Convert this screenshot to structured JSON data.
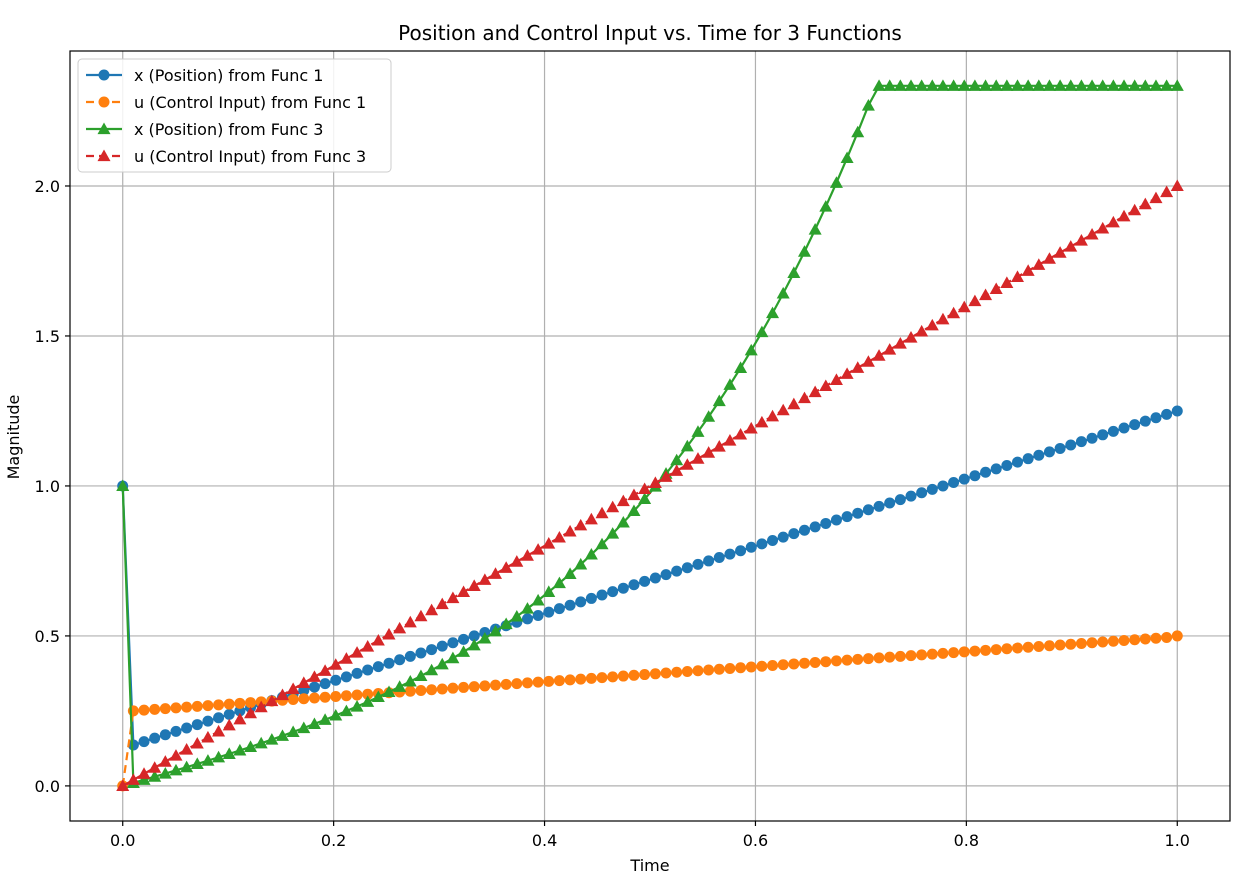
{
  "chart_data": {
    "type": "line",
    "title": "Position and Control Input vs. Time for 3 Functions",
    "xlabel": "Time",
    "ylabel": "Magnitude",
    "xlim": [
      -0.05,
      1.05
    ],
    "ylim": [
      -0.117,
      2.45
    ],
    "xticks": [
      0.0,
      0.2,
      0.4,
      0.6,
      0.8,
      1.0
    ],
    "xtick_labels": [
      "0.0",
      "0.2",
      "0.4",
      "0.6",
      "0.8",
      "1.0"
    ],
    "yticks": [
      0.0,
      0.5,
      1.0,
      1.5,
      2.0
    ],
    "ytick_labels": [
      "0.0",
      "0.5",
      "1.0",
      "1.5",
      "2.0"
    ],
    "grid": true,
    "legend_position": "upper-left",
    "x": [
      0.0,
      0.0101,
      0.0202,
      0.0303,
      0.0404,
      0.0505,
      0.0606,
      0.0707,
      0.0808,
      0.0909,
      0.101,
      0.1111,
      0.1212,
      0.1313,
      0.1414,
      0.1515,
      0.1616,
      0.1717,
      0.1818,
      0.1919,
      0.202,
      0.2121,
      0.2222,
      0.2323,
      0.2424,
      0.2525,
      0.2626,
      0.2727,
      0.2828,
      0.2929,
      0.303,
      0.3131,
      0.3232,
      0.3333,
      0.3434,
      0.3535,
      0.3636,
      0.3737,
      0.3838,
      0.3939,
      0.404,
      0.4141,
      0.4242,
      0.4343,
      0.4444,
      0.4545,
      0.4646,
      0.4747,
      0.4848,
      0.4949,
      0.5051,
      0.5152,
      0.5253,
      0.5354,
      0.5455,
      0.5556,
      0.5657,
      0.5758,
      0.5859,
      0.596,
      0.6061,
      0.6162,
      0.6263,
      0.6364,
      0.6465,
      0.6566,
      0.6667,
      0.6768,
      0.6869,
      0.697,
      0.7071,
      0.7172,
      0.7273,
      0.7374,
      0.7475,
      0.7576,
      0.7677,
      0.7778,
      0.7879,
      0.798,
      0.8081,
      0.8182,
      0.8283,
      0.8384,
      0.8485,
      0.8586,
      0.8687,
      0.8788,
      0.8889,
      0.899,
      0.9091,
      0.9192,
      0.9293,
      0.9394,
      0.9495,
      0.9596,
      0.9697,
      0.9798,
      0.9899,
      1.0
    ],
    "series": [
      {
        "name": "x (Position) from Func 1",
        "color": "#1f77b4",
        "linestyle": "solid",
        "marker": "circle",
        "values": [
          1.0,
          0.1364,
          0.1477,
          0.1591,
          0.1705,
          0.1818,
          0.1932,
          0.2045,
          0.2159,
          0.2273,
          0.2386,
          0.25,
          0.2614,
          0.2727,
          0.2841,
          0.2955,
          0.3068,
          0.3182,
          0.3295,
          0.3409,
          0.3523,
          0.3636,
          0.375,
          0.3864,
          0.3977,
          0.4091,
          0.4205,
          0.4318,
          0.4432,
          0.4545,
          0.4659,
          0.4773,
          0.4886,
          0.5,
          0.5114,
          0.5227,
          0.5341,
          0.5455,
          0.5568,
          0.5682,
          0.5795,
          0.5909,
          0.6023,
          0.6136,
          0.625,
          0.6364,
          0.6477,
          0.6591,
          0.6705,
          0.6818,
          0.6932,
          0.7045,
          0.7159,
          0.7273,
          0.7386,
          0.75,
          0.7614,
          0.7727,
          0.7841,
          0.7955,
          0.8068,
          0.8182,
          0.8295,
          0.8409,
          0.8523,
          0.8636,
          0.875,
          0.8864,
          0.8977,
          0.9091,
          0.9205,
          0.9318,
          0.9432,
          0.9545,
          0.9659,
          0.9773,
          0.9886,
          1.0,
          1.0114,
          1.0227,
          1.0341,
          1.0455,
          1.0568,
          1.0682,
          1.0795,
          1.0909,
          1.1023,
          1.1136,
          1.125,
          1.1364,
          1.1477,
          1.1591,
          1.1705,
          1.1818,
          1.1932,
          1.2045,
          1.2159,
          1.2273,
          1.2386,
          1.25
        ]
      },
      {
        "name": "u (Control Input) from Func 1",
        "color": "#ff7f0e",
        "linestyle": "dashed",
        "marker": "circle",
        "values": [
          0.0,
          0.25,
          0.2525,
          0.2551,
          0.2576,
          0.2601,
          0.2626,
          0.2652,
          0.2677,
          0.2702,
          0.2727,
          0.2753,
          0.2778,
          0.2803,
          0.2828,
          0.2854,
          0.2879,
          0.2904,
          0.2929,
          0.2955,
          0.298,
          0.3005,
          0.303,
          0.3056,
          0.3081,
          0.3106,
          0.3131,
          0.3157,
          0.3182,
          0.3207,
          0.3232,
          0.3258,
          0.3283,
          0.3308,
          0.3333,
          0.3359,
          0.3384,
          0.3409,
          0.3434,
          0.346,
          0.3485,
          0.351,
          0.3535,
          0.3561,
          0.3586,
          0.3611,
          0.3636,
          0.3662,
          0.3687,
          0.3712,
          0.3737,
          0.3763,
          0.3788,
          0.3813,
          0.3838,
          0.3864,
          0.3889,
          0.3914,
          0.3939,
          0.3965,
          0.399,
          0.4015,
          0.404,
          0.4066,
          0.4091,
          0.4116,
          0.4141,
          0.4167,
          0.4192,
          0.4217,
          0.4242,
          0.4268,
          0.4293,
          0.4318,
          0.4343,
          0.4369,
          0.4394,
          0.4419,
          0.4444,
          0.447,
          0.4495,
          0.452,
          0.4545,
          0.4571,
          0.4596,
          0.4621,
          0.4646,
          0.4672,
          0.4697,
          0.4722,
          0.4747,
          0.4773,
          0.4798,
          0.4823,
          0.4848,
          0.4874,
          0.4899,
          0.4924,
          0.4949,
          0.5
        ]
      },
      {
        "name": "x (Position) from Func 3",
        "color": "#2ca02c",
        "linestyle": "solid",
        "marker": "triangle",
        "values": [
          1.0,
          0.0101,
          0.0204,
          0.0308,
          0.0413,
          0.0519,
          0.0626,
          0.0734,
          0.0843,
          0.0955,
          0.1068,
          0.1183,
          0.1301,
          0.1421,
          0.1544,
          0.1669,
          0.1798,
          0.193,
          0.2065,
          0.2205,
          0.2348,
          0.2495,
          0.2647,
          0.2803,
          0.2965,
          0.3132,
          0.3304,
          0.3482,
          0.3666,
          0.3857,
          0.4054,
          0.4258,
          0.447,
          0.4689,
          0.4916,
          0.5152,
          0.5396,
          0.5649,
          0.5912,
          0.6185,
          0.6468,
          0.6762,
          0.7068,
          0.7385,
          0.7715,
          0.8057,
          0.8412,
          0.8782,
          0.9166,
          0.9565,
          0.998,
          1.041,
          1.0858,
          1.1323,
          1.1806,
          1.2308,
          1.283,
          1.3372,
          1.3936,
          1.4521,
          1.513,
          1.5762,
          1.6419,
          1.7102,
          1.7811,
          1.8548,
          1.9313,
          2.0108,
          2.0934,
          2.1792,
          2.2683,
          2.3339,
          2.3339,
          2.3339,
          2.3339,
          2.3339,
          2.3339,
          2.3339,
          2.3339,
          2.3339,
          2.3339,
          2.3339,
          2.3339,
          2.3339,
          2.3339,
          2.3339,
          2.3339,
          2.3339,
          2.3339,
          2.3339,
          2.3339,
          2.3339,
          2.3339,
          2.3339,
          2.3339,
          2.3339,
          2.3339,
          2.3339,
          2.3339,
          2.3339
        ]
      },
      {
        "name": "u (Control Input) from Func 3",
        "color": "#d62728",
        "linestyle": "dashed",
        "marker": "triangle",
        "values": [
          0.0,
          0.0202,
          0.0404,
          0.0606,
          0.0808,
          0.101,
          0.1212,
          0.1414,
          0.1616,
          0.1818,
          0.202,
          0.2222,
          0.2424,
          0.2626,
          0.2828,
          0.303,
          0.3232,
          0.3434,
          0.3636,
          0.3838,
          0.404,
          0.4242,
          0.4444,
          0.4646,
          0.4848,
          0.5051,
          0.5253,
          0.5455,
          0.5657,
          0.5859,
          0.6061,
          0.6263,
          0.6465,
          0.6667,
          0.6869,
          0.7071,
          0.7273,
          0.7475,
          0.7677,
          0.7879,
          0.8081,
          0.8283,
          0.8485,
          0.8687,
          0.8889,
          0.9091,
          0.9293,
          0.9495,
          0.9697,
          0.9899,
          1.0101,
          1.0303,
          1.0505,
          1.0707,
          1.0909,
          1.1111,
          1.1313,
          1.1515,
          1.1717,
          1.1919,
          1.2121,
          1.2323,
          1.2525,
          1.2727,
          1.2929,
          1.3131,
          1.3333,
          1.3535,
          1.3737,
          1.3939,
          1.4141,
          1.4343,
          1.4545,
          1.4747,
          1.4949,
          1.5152,
          1.5354,
          1.5556,
          1.5758,
          1.596,
          1.6162,
          1.6364,
          1.6566,
          1.6768,
          1.697,
          1.7172,
          1.7374,
          1.7576,
          1.7778,
          1.798,
          1.8182,
          1.8384,
          1.8586,
          1.8788,
          1.899,
          1.9192,
          1.9394,
          1.9596,
          1.9798,
          2.0
        ]
      }
    ]
  }
}
